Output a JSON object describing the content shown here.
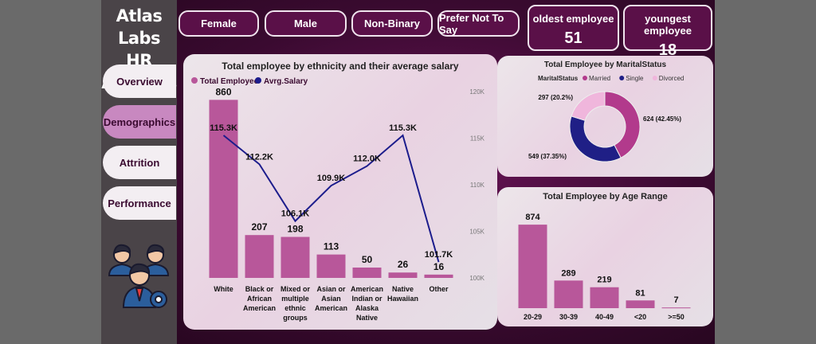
{
  "sidebar": {
    "title_line1": "Atlas Labs",
    "title_line2": "HR Analysis",
    "nav": [
      {
        "label": "Overview"
      },
      {
        "label": "Demographics"
      },
      {
        "label": "Attrition"
      },
      {
        "label": "Performance"
      }
    ]
  },
  "filters": [
    {
      "label": "Female"
    },
    {
      "label": "Male"
    },
    {
      "label": "Non-Binary"
    },
    {
      "label": "Prefer Not To Say"
    }
  ],
  "kpis": {
    "oldest": {
      "label": "oldest employee",
      "value": "51"
    },
    "youngest": {
      "label": "youngest employee",
      "value": "18"
    }
  },
  "colors": {
    "bar": "#b8579a",
    "line": "#1c1c8c",
    "married": "#b23a8c",
    "single": "#1f1f86",
    "divorced": "#f0b6dc"
  },
  "chart_data": [
    {
      "type": "bar",
      "title": "Total employee by ethnicity and their average salary",
      "legend": [
        "Total Employee",
        "Avrg.Salary"
      ],
      "legend_position": "top-left",
      "categories": [
        "White",
        "Black or African American",
        "Mixed or multiple ethnic groups",
        "Asian or Asian American",
        "American Indian or Alaska Native",
        "Native Hawaiian",
        "Other"
      ],
      "category_lines": [
        [
          "White"
        ],
        [
          "Black or",
          "African",
          "American"
        ],
        [
          "Mixed or",
          "multiple",
          "ethnic",
          "groups"
        ],
        [
          "Asian or",
          "Asian",
          "American"
        ],
        [
          "American",
          "Indian or",
          "Alaska",
          "Native"
        ],
        [
          "Native",
          "Hawaiian"
        ],
        [
          "Other"
        ]
      ],
      "series": [
        {
          "name": "Total Employee",
          "type": "bar",
          "values": [
            860,
            207,
            198,
            113,
            50,
            26,
            16
          ],
          "labels": [
            "860",
            "207",
            "198",
            "113",
            "50",
            "26",
            "16"
          ]
        },
        {
          "name": "Avrg.Salary",
          "type": "line",
          "axis": "right",
          "values": [
            115300,
            112200,
            106100,
            109900,
            112000,
            115300,
            101700
          ],
          "labels": [
            "115.3K",
            "112.2K",
            "106.1K",
            "109.9K",
            "112.0K",
            "115.3K",
            "101.7K"
          ]
        }
      ],
      "ylim": [
        0,
        900
      ],
      "y2lim": [
        100000,
        120000
      ],
      "y2ticks": [
        {
          "v": 120000,
          "t": "120K"
        },
        {
          "v": 115000,
          "t": "115K"
        },
        {
          "v": 110000,
          "t": "110K"
        },
        {
          "v": 105000,
          "t": "105K"
        },
        {
          "v": 100000,
          "t": "100K"
        }
      ]
    },
    {
      "type": "pie",
      "title": "Total Employee by MaritalStatus",
      "legend_title": "MaritalStatus",
      "legend_position": "top",
      "slices": [
        {
          "name": "Married",
          "value": 624,
          "label": "624 (42.45%)"
        },
        {
          "name": "Single",
          "value": 549,
          "label": "549 (37.35%)"
        },
        {
          "name": "Divorced",
          "value": 297,
          "label": "297 (20.2%)"
        }
      ]
    },
    {
      "type": "bar",
      "title": "Total Employee by Age Range",
      "categories": [
        "20-29",
        "30-39",
        "40-49",
        "<20",
        ">=50"
      ],
      "values": [
        874,
        289,
        219,
        81,
        7
      ],
      "labels": [
        "874",
        "289",
        "219",
        "81",
        "7"
      ],
      "ylim": [
        0,
        900
      ]
    }
  ]
}
